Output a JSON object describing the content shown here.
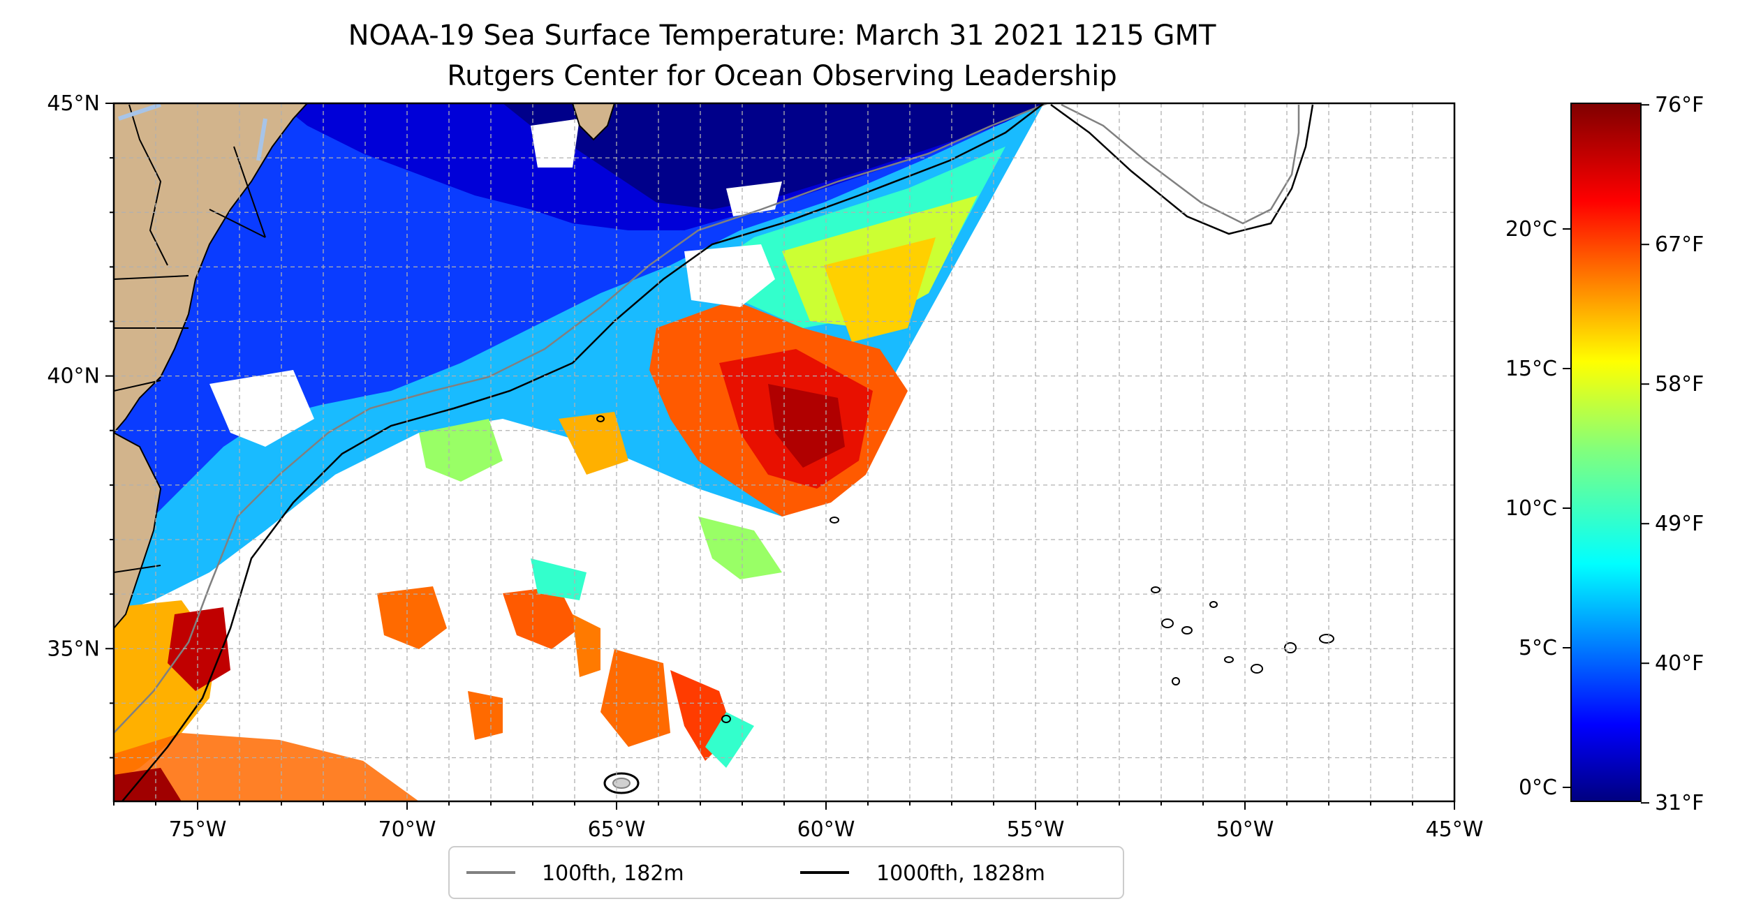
{
  "title": {
    "line1": "NOAA-19 Sea Surface Temperature: March 31 2021 1215 GMT",
    "line2": "Rutgers Center for Ocean Observing Leadership"
  },
  "map": {
    "extent": {
      "lon": [
        -77,
        -45
      ],
      "lat": [
        32.2,
        45
      ]
    },
    "x_ticks": [
      {
        "value": -75,
        "label": "75°W"
      },
      {
        "value": -70,
        "label": "70°W"
      },
      {
        "value": -65,
        "label": "65°W"
      },
      {
        "value": -60,
        "label": "60°W"
      },
      {
        "value": -55,
        "label": "55°W"
      },
      {
        "value": -50,
        "label": "50°W"
      },
      {
        "value": -45,
        "label": "45°W"
      }
    ],
    "y_ticks": [
      {
        "value": 45,
        "label": "45°N"
      },
      {
        "value": 40,
        "label": "40°N"
      },
      {
        "value": 35,
        "label": "35°N"
      }
    ],
    "gridlines": true,
    "land_color": "#d2b48c",
    "lake_color": "#a7c4e8",
    "colormap": "jet"
  },
  "legend": {
    "placement": "bottom-center",
    "items": [
      {
        "label": "100fth, 182m",
        "color": "#808080"
      },
      {
        "label": "1000fth, 1828m",
        "color": "#000000"
      }
    ]
  },
  "colorbar": {
    "range_c": [
      -0.5,
      24.5
    ],
    "celsius_ticks": [
      {
        "value": 0,
        "label": "0°C"
      },
      {
        "value": 5,
        "label": "5°C"
      },
      {
        "value": 10,
        "label": "10°C"
      },
      {
        "value": 15,
        "label": "15°C"
      },
      {
        "value": 20,
        "label": "20°C"
      }
    ],
    "fahrenheit_ticks": [
      {
        "value": 31,
        "label": "31°F"
      },
      {
        "value": 40,
        "label": "40°F"
      },
      {
        "value": 49,
        "label": "49°F"
      },
      {
        "value": 58,
        "label": "58°F"
      },
      {
        "value": 67,
        "label": "67°F"
      },
      {
        "value": 76,
        "label": "76°F"
      }
    ]
  }
}
